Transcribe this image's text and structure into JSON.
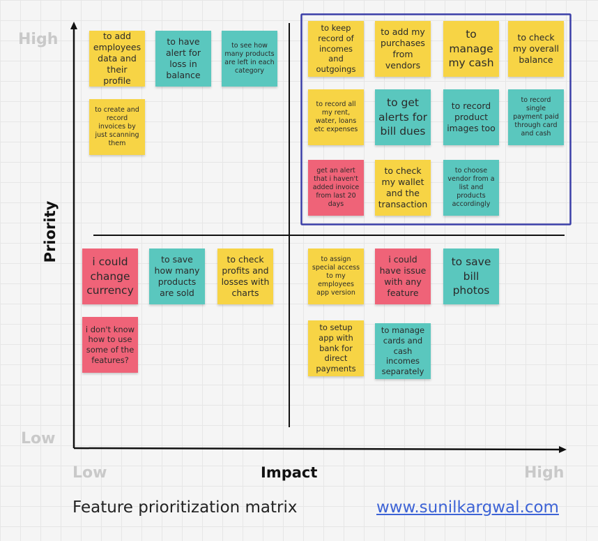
{
  "axes": {
    "y_high": "High",
    "y_low": "Low",
    "x_low": "Low",
    "x_high": "High",
    "y_title": "Priority",
    "x_title": "Impact"
  },
  "footer": {
    "title": "Feature prioritization matrix",
    "link": "www.sunilkargwal.com"
  },
  "colors": {
    "yellow": "#f7d445",
    "teal": "#5ac7be",
    "pink": "#ef6378",
    "highlight_border": "#3b3fa8"
  },
  "quadrants": {
    "low_impact_high_priority": [
      {
        "text": "to add employees data and their profile",
        "color": "yellow"
      },
      {
        "text": "to have alert for loss in balance",
        "color": "teal"
      },
      {
        "text": "to see how many products are left in each category",
        "color": "teal"
      },
      {
        "text": "to create and record invoices by just scanning them",
        "color": "yellow"
      }
    ],
    "high_impact_high_priority": [
      {
        "text": "to keep record of incomes and outgoings",
        "color": "yellow"
      },
      {
        "text": "to add my purchases from vendors",
        "color": "yellow"
      },
      {
        "text": "to manage my cash",
        "color": "yellow"
      },
      {
        "text": "to check my overall balance",
        "color": "yellow"
      },
      {
        "text": "to record all my rent, water, loans etc expenses",
        "color": "yellow"
      },
      {
        "text": "to get alerts for bill dues",
        "color": "teal"
      },
      {
        "text": "to record product images too",
        "color": "teal"
      },
      {
        "text": "to record single payment paid through card and cash",
        "color": "teal"
      },
      {
        "text": "get an alert that i haven't added invoice from last 20 days",
        "color": "pink"
      },
      {
        "text": "to check my wallet and the transaction",
        "color": "yellow"
      },
      {
        "text": "to choose vendor from a list and products accordingly",
        "color": "teal"
      }
    ],
    "low_impact_low_priority": [
      {
        "text": "i could change currency",
        "color": "pink"
      },
      {
        "text": "to save how many products are sold",
        "color": "teal"
      },
      {
        "text": "to check profits and losses with charts",
        "color": "yellow"
      },
      {
        "text": "i don't know how to use some of the features?",
        "color": "pink"
      }
    ],
    "high_impact_low_priority": [
      {
        "text": "to assign special access to my employees app version",
        "color": "yellow"
      },
      {
        "text": "i could have issue with any feature",
        "color": "pink"
      },
      {
        "text": "to save bill photos",
        "color": "teal"
      },
      {
        "text": "to setup app with bank for direct payments",
        "color": "yellow"
      },
      {
        "text": "to manage cards and cash incomes separately",
        "color": "teal"
      }
    ]
  }
}
